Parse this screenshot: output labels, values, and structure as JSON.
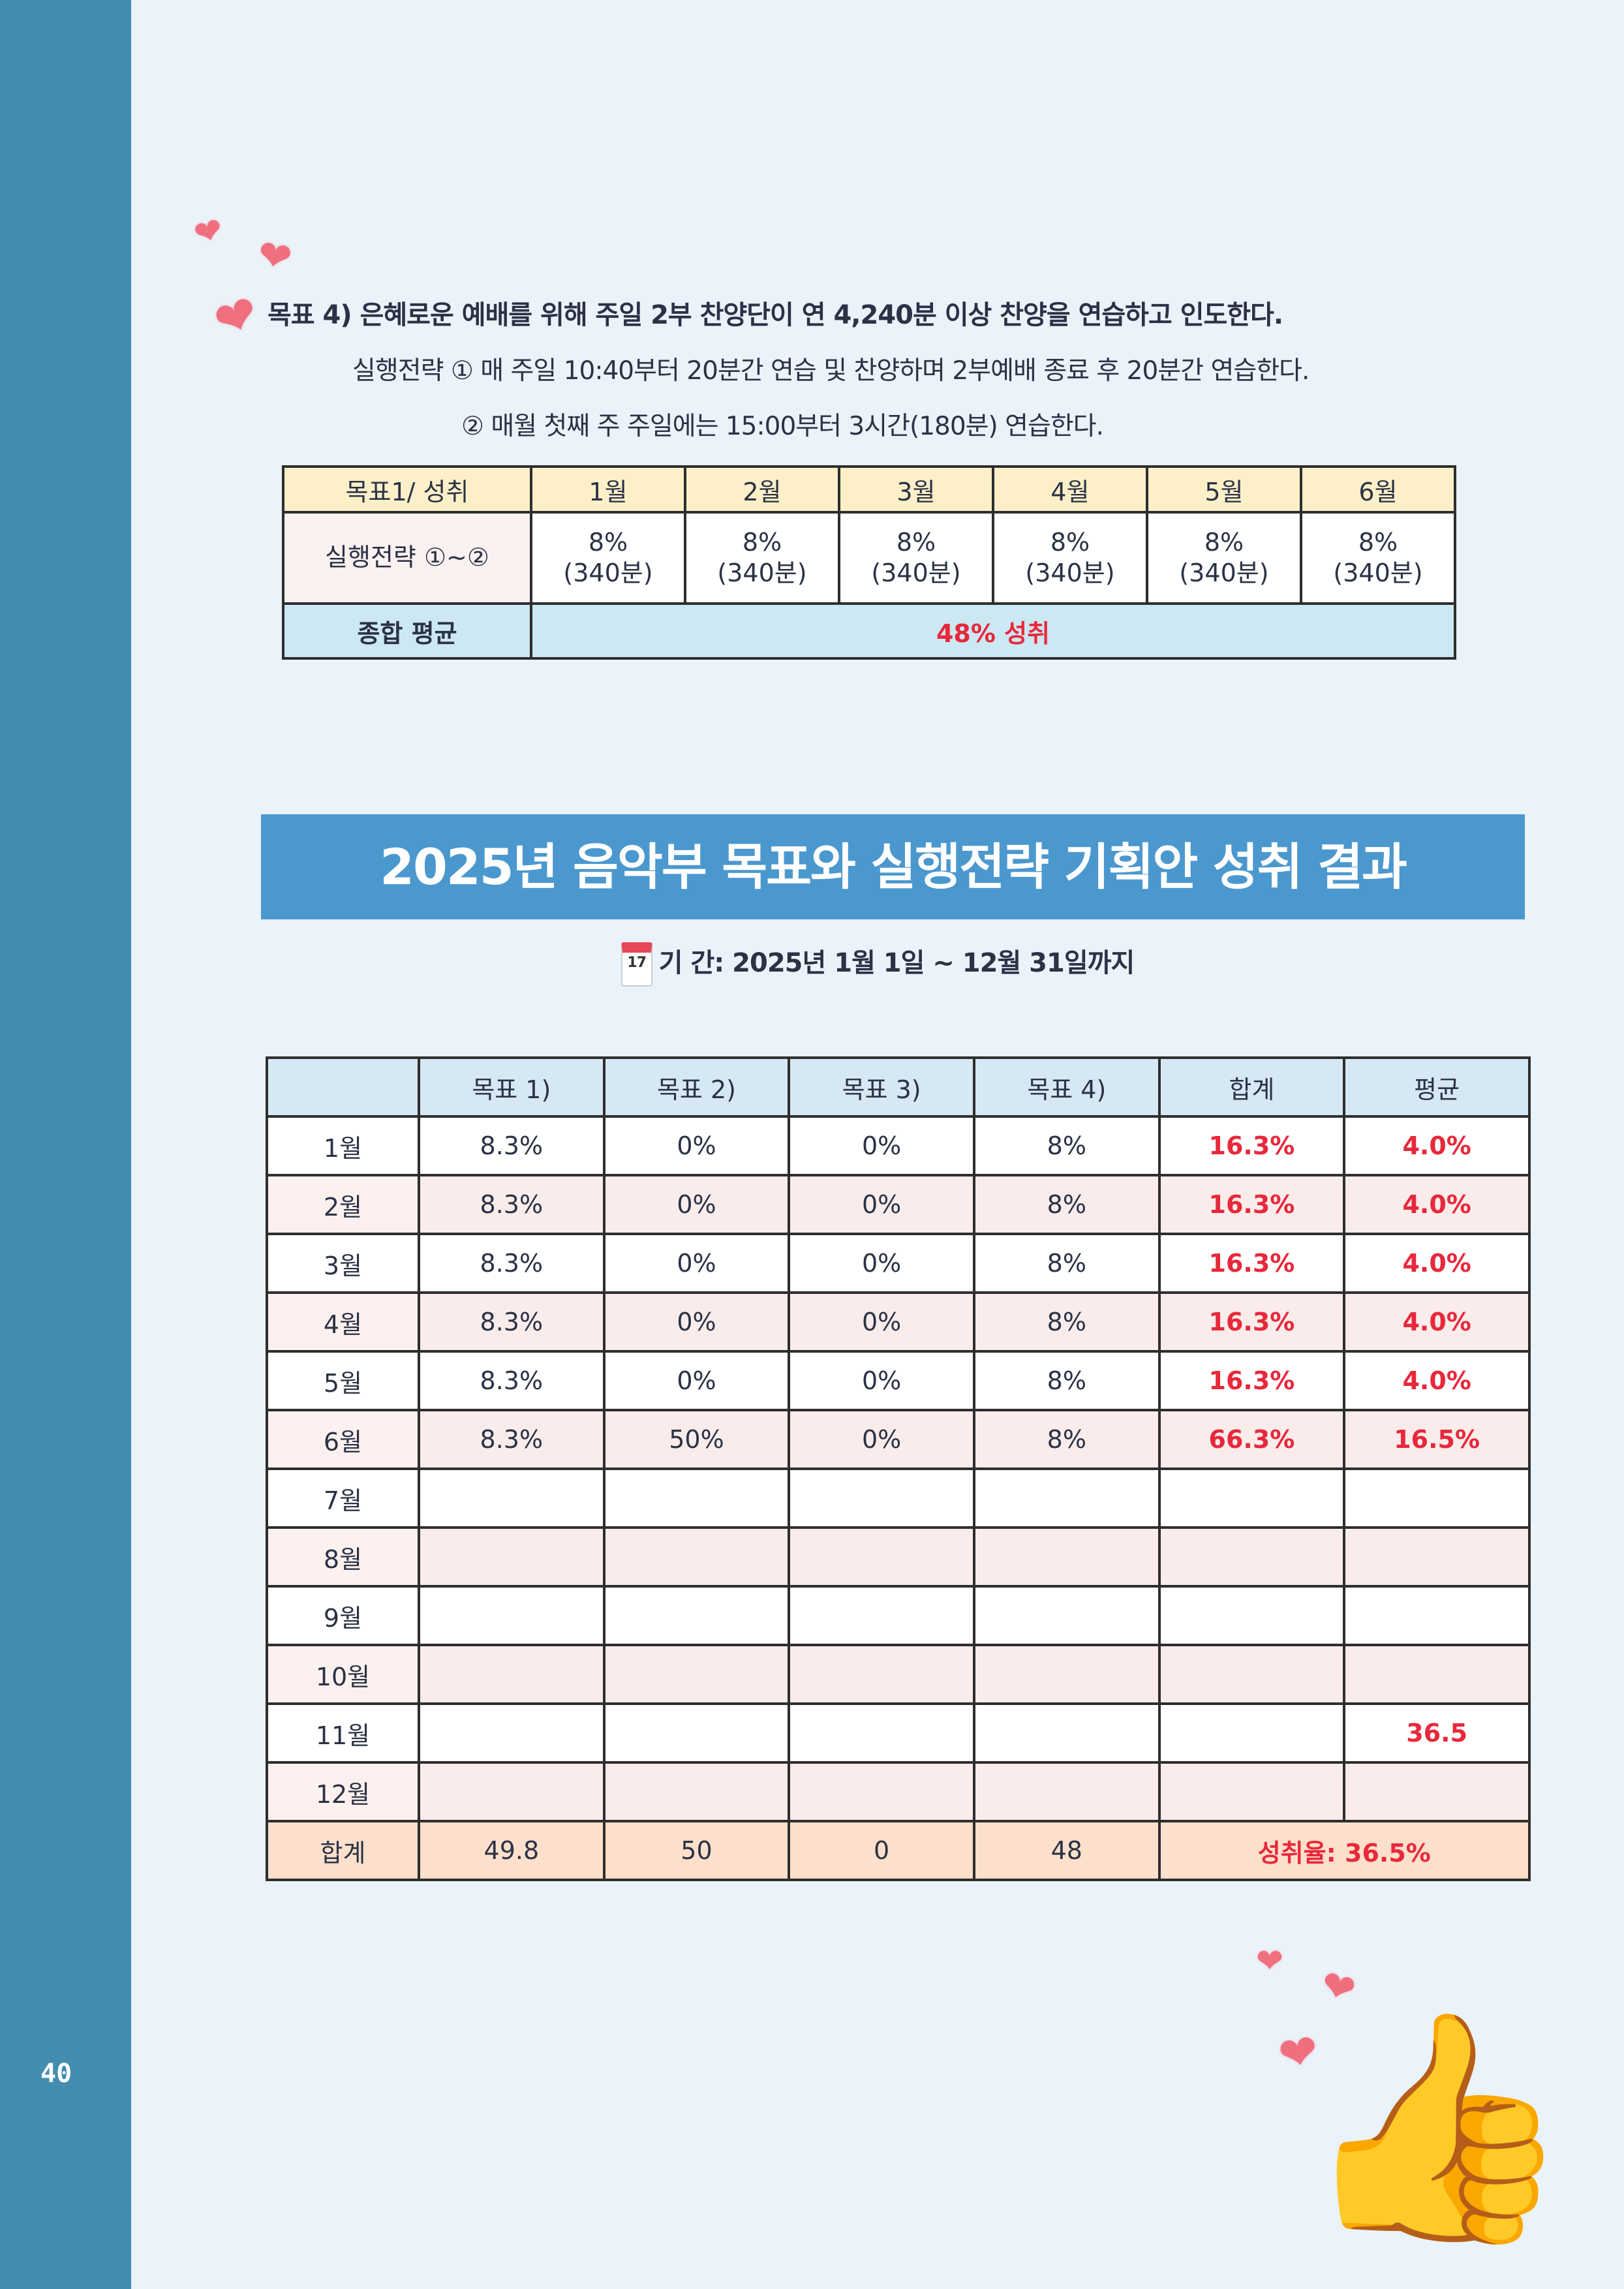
{
  "page_number": "40",
  "goal4": {
    "title": "목표 4) 은혜로운 예배를 위해 주일 2부 찬양단이 연 4,240분 이상 찬양을 연습하고 인도한다.",
    "strategy1": "실행전략 ① 매 주일 10:40부터 20분간 연습 및 찬양하며 2부예배 종료 후 20분간 연습한다.",
    "strategy2": "② 매월 첫째 주 주일에는 15:00부터 3시간(180분) 연습한다."
  },
  "table1": {
    "header": [
      "목표1/ 성취",
      "1월",
      "2월",
      "3월",
      "4월",
      "5월",
      "6월"
    ],
    "row_label": "실행전략 ①~②",
    "cells": [
      {
        "pct": "8%",
        "min": "(340분)"
      },
      {
        "pct": "8%",
        "min": "(340분)"
      },
      {
        "pct": "8%",
        "min": "(340분)"
      },
      {
        "pct": "8%",
        "min": "(340분)"
      },
      {
        "pct": "8%",
        "min": "(340분)"
      },
      {
        "pct": "8%",
        "min": "(340분)"
      }
    ],
    "footer_label": "종합 평균",
    "footer_value": "48% 성취"
  },
  "banner": "2025년 음악부 목표와 실행전략 기획안 성취 결과",
  "period": {
    "icon_text": "17",
    "text": "기  간: 2025년 1월 1일 ~ 12월 31일까지"
  },
  "table2": {
    "header": [
      "",
      "목표 1)",
      "목표 2)",
      "목표 3)",
      "목표 4)",
      "합계",
      "평균"
    ],
    "rows": [
      [
        "1월",
        "8.3%",
        "0%",
        "0%",
        "8%",
        "16.3%",
        "4.0%"
      ],
      [
        "2월",
        "8.3%",
        "0%",
        "0%",
        "8%",
        "16.3%",
        "4.0%"
      ],
      [
        "3월",
        "8.3%",
        "0%",
        "0%",
        "8%",
        "16.3%",
        "4.0%"
      ],
      [
        "4월",
        "8.3%",
        "0%",
        "0%",
        "8%",
        "16.3%",
        "4.0%"
      ],
      [
        "5월",
        "8.3%",
        "0%",
        "0%",
        "8%",
        "16.3%",
        "4.0%"
      ],
      [
        "6월",
        "8.3%",
        "50%",
        "0%",
        "8%",
        "66.3%",
        "16.5%"
      ],
      [
        "7월",
        "",
        "",
        "",
        "",
        "",
        ""
      ],
      [
        "8월",
        "",
        "",
        "",
        "",
        "",
        ""
      ],
      [
        "9월",
        "",
        "",
        "",
        "",
        "",
        ""
      ],
      [
        "10월",
        "",
        "",
        "",
        "",
        "",
        ""
      ],
      [
        "11월",
        "",
        "",
        "",
        "",
        "",
        "36.5"
      ],
      [
        "12월",
        "",
        "",
        "",
        "",
        "",
        ""
      ]
    ],
    "total": [
      "합계",
      "49.8",
      "50",
      "0",
      "48",
      "성취율: 36.5%"
    ]
  },
  "colors": {
    "sidebar": "#438eae",
    "banner": "#4b98cf",
    "accent_red": "#e8283b"
  }
}
